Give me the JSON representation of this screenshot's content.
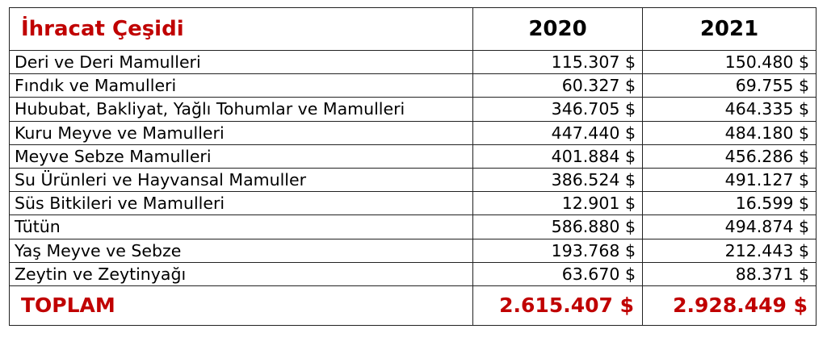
{
  "table": {
    "header": {
      "title": "İhracat Çeşidi",
      "year1": "2020",
      "year2": "2021"
    },
    "rows": [
      {
        "label": "Deri ve Deri Mamulleri",
        "v2020": "115.307 $",
        "v2021": "150.480 $"
      },
      {
        "label": "Fındık ve Mamulleri",
        "v2020": "60.327 $",
        "v2021": "69.755 $"
      },
      {
        "label": "Hububat, Bakliyat, Yağlı Tohumlar ve Mamulleri",
        "v2020": "346.705 $",
        "v2021": "464.335 $"
      },
      {
        "label": "Kuru Meyve ve Mamulleri",
        "v2020": "447.440 $",
        "v2021": "484.180 $"
      },
      {
        "label": "Meyve Sebze Mamulleri",
        "v2020": "401.884 $",
        "v2021": "456.286 $"
      },
      {
        "label": "Su Ürünleri ve Hayvansal Mamuller",
        "v2020": "386.524 $",
        "v2021": "491.127 $"
      },
      {
        "label": "Süs Bitkileri ve Mamulleri",
        "v2020": "12.901 $",
        "v2021": "16.599 $"
      },
      {
        "label": "Tütün",
        "v2020": "586.880 $",
        "v2021": "494.874 $"
      },
      {
        "label": "Yaş Meyve ve Sebze",
        "v2020": "193.768 $",
        "v2021": "212.443 $"
      },
      {
        "label": "Zeytin ve Zeytinyağı",
        "v2020": "63.670 $",
        "v2021": "88.371 $"
      }
    ],
    "total": {
      "label": "TOPLAM",
      "v2020": "2.615.407 $",
      "v2021": "2.928.449 $"
    }
  },
  "colors": {
    "accent": "#c00000",
    "text": "#000000",
    "border": "#222222"
  }
}
